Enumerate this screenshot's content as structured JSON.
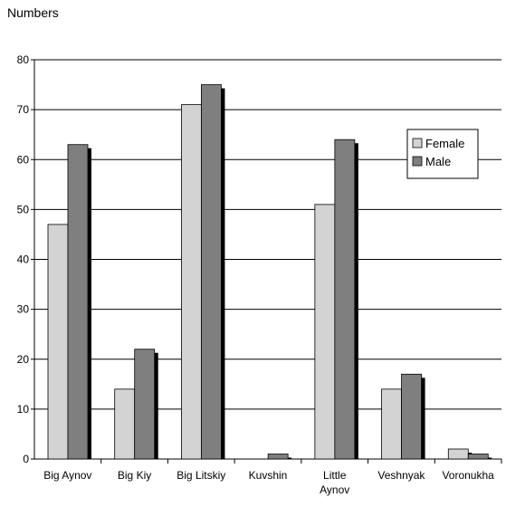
{
  "chart_data": {
    "type": "bar",
    "title": "",
    "ylabel": "Numbers",
    "xlabel": "",
    "ylim": [
      0,
      80
    ],
    "yticks": [
      0,
      10,
      20,
      30,
      40,
      50,
      60,
      70,
      80
    ],
    "grid": true,
    "legend_position": "right",
    "categories": [
      [
        "Big Aynov"
      ],
      [
        "Big Kiy"
      ],
      [
        "Big Litskiy"
      ],
      [
        "Kuvshin"
      ],
      [
        "Little",
        "Aynov"
      ],
      [
        "Veshnyak"
      ],
      [
        "Voronukha"
      ]
    ],
    "series": [
      {
        "name": "Female",
        "color": "#d3d3d3",
        "values": [
          47,
          14,
          71,
          0,
          51,
          14,
          2
        ]
      },
      {
        "name": "Male",
        "color": "#7f7f7f",
        "values": [
          63,
          22,
          75,
          1,
          64,
          17,
          1
        ]
      }
    ]
  }
}
